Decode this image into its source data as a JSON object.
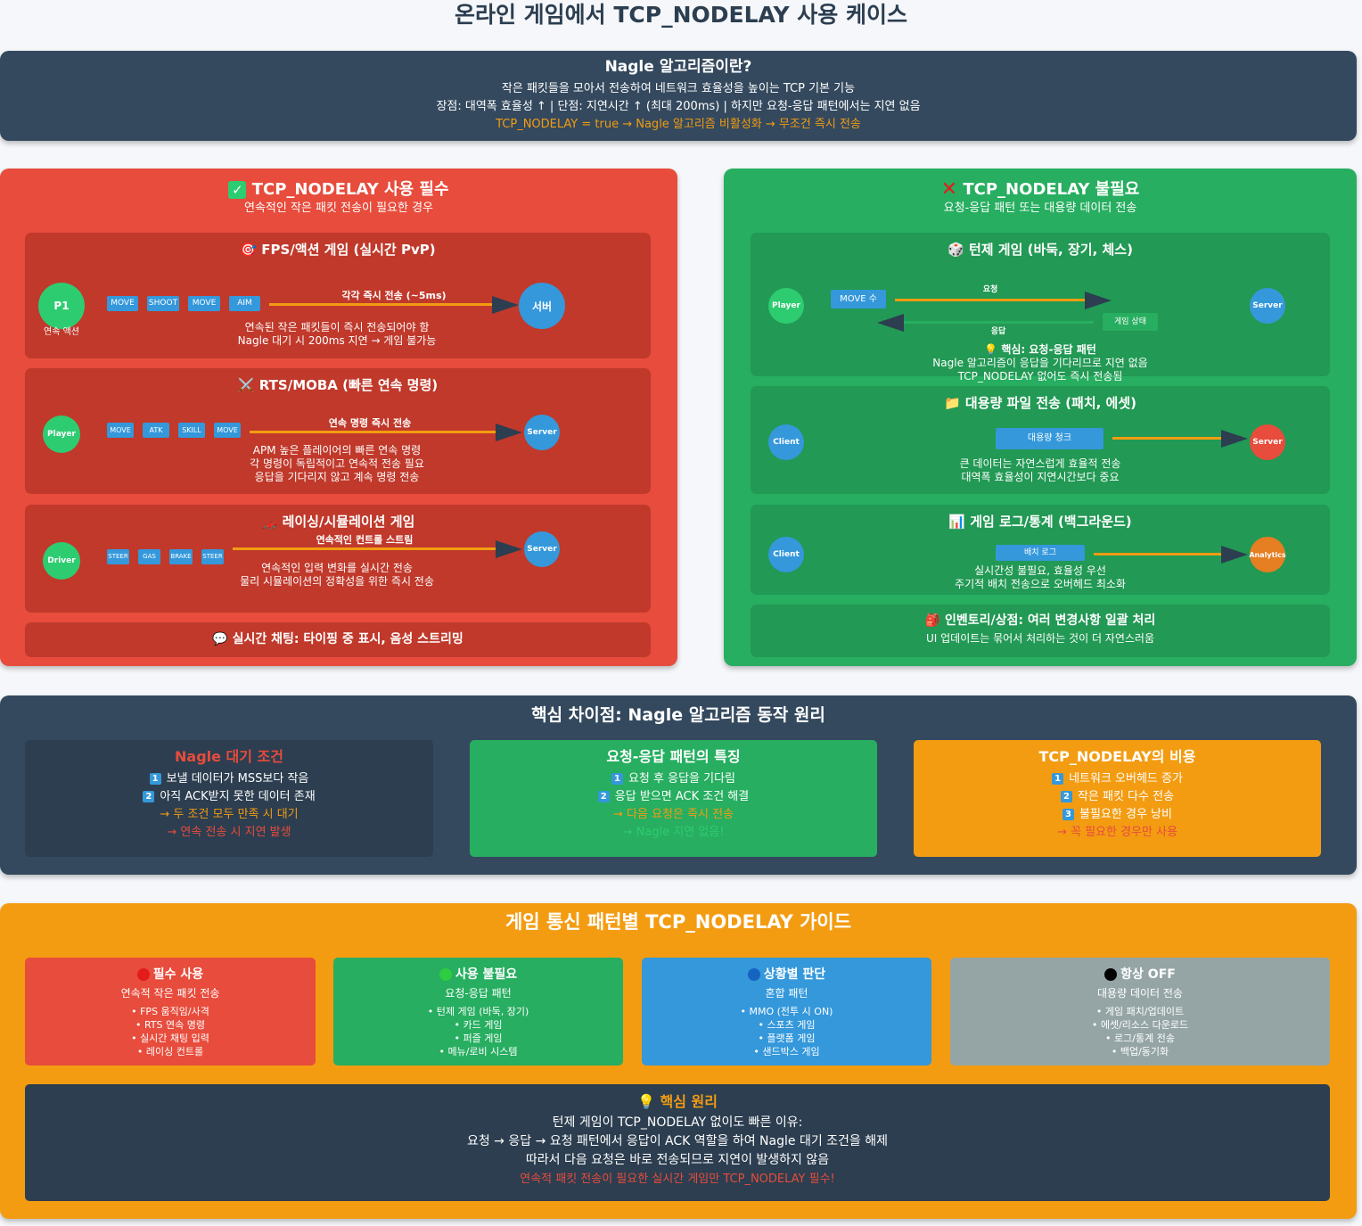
{
  "title": "온라인 게임에서 TCP_NODELAY 사용 케이스",
  "nagle": {
    "heading": "Nagle 알고리즘이란?",
    "line1": "작은 패킷들을 모아서 전송하여 네트워크 효율성을 높이는 TCP 기본 기능",
    "line2": "장점: 대역폭 효율성 ↑ | 단점: 지연시간 ↑ (최대 200ms) | 하지만 요청-응답 패턴에서는 지연 없음",
    "line3": "TCP_NODELAY = true → Nagle 알고리즘 비활성화 → 무조건 즉시 전송"
  },
  "required": {
    "icon": "check-icon",
    "heading": "TCP_NODELAY 사용 필수",
    "subtitle": "연속적인 작은 패킷 전송이 필요한 경우",
    "fps": {
      "heading": "🎯 FPS/액션 게임 (실시간 PvP)",
      "client": "P1",
      "client_caption": "연속 액션",
      "packets": [
        "MOVE",
        "SHOOT",
        "MOVE",
        "AIM"
      ],
      "arrow_label": "각각 즉시 전송 (~5ms)",
      "server": "서버",
      "desc1": "연속된 작은 패킷들이 즉시 전송되어야 함",
      "desc2": "Nagle 대기 시 200ms 지연 → 게임 불가능"
    },
    "rts": {
      "heading": "⚔️ RTS/MOBA (빠른 연속 명령)",
      "client": "Player",
      "packets": [
        "MOVE",
        "ATK",
        "SKILL",
        "MOVE"
      ],
      "arrow_label": "연속 명령 즉시 전송",
      "server": "Server",
      "desc1": "APM 높은 플레이어의 빠른 연속 명령",
      "desc2": "각 명령이 독립적이고 연속적 전송 필요",
      "desc3": "응답을 기다리지 않고 계속 명령 전송"
    },
    "racing": {
      "heading": "🏎️ 레이싱/시뮬레이션 게임",
      "client": "Driver",
      "packets": [
        "STEER",
        "GAS",
        "BRAKE",
        "STEER"
      ],
      "arrow_label": "연속적인 컨트롤 스트림",
      "server": "Server",
      "desc1": "연속적인 입력 변화를 실시간 전송",
      "desc2": "물리 시뮬레이션의 정확성을 위한 즉시 전송"
    },
    "chat": "💬 실시간 채팅: 타이핑 중 표시, 음성 스트리밍"
  },
  "not_needed": {
    "icon": "cross-icon",
    "heading": "TCP_NODELAY 불필요",
    "subtitle": "요청-응답 패턴 또는 대용량 데이터 전송",
    "turn": {
      "heading": "🎲 턴제 게임 (바둑, 장기, 체스)",
      "client": "Player",
      "packet": "MOVE 수",
      "req_label": "요청",
      "resp_packet": "게임 상태",
      "resp_label": "응답",
      "server": "Server",
      "key": "💡 핵심: 요청-응답 패턴",
      "desc1": "Nagle 알고리즘이 응답을 기다리므로 지연 없음",
      "desc2": "TCP_NODELAY 없어도 즉시 전송됨"
    },
    "file": {
      "heading": "📁 대용량 파일 전송 (패치, 에셋)",
      "client": "Client",
      "packet": "대용량 청크",
      "server": "Server",
      "desc1": "큰 데이터는 자연스럽게 효율적 전송",
      "desc2": "대역폭 효율성이 지연시간보다 중요"
    },
    "log": {
      "heading": "📊 게임 로그/통계 (백그라운드)",
      "client": "Client",
      "packet": "배치 로그",
      "server": "Analytics",
      "desc1": "실시간성 불필요, 효율성 우선",
      "desc2": "주기적 배치 전송으로 오버헤드 최소화"
    },
    "inventory_heading": "🎒 인벤토리/상점: 여러 변경사항 일괄 처리",
    "inventory_desc": "UI 업데이트는 묶어서 처리하는 것이 더 자연스러움"
  },
  "core": {
    "heading": "핵심 차이점: Nagle 알고리즘 동작 원리",
    "col1": {
      "heading": "Nagle 대기 조건",
      "n1": "1",
      "l1": "보낼 데이터가 MSS보다 작음",
      "n2": "2",
      "l2": "아직 ACK받지 못한 데이터 존재",
      "l3": "→ 두 조건 모두 만족 시 대기",
      "l4": "→ 연속 전송 시 지연 발생"
    },
    "col2": {
      "heading": "요청-응답 패턴의 특징",
      "n1": "1",
      "l1": "요청 후 응답을 기다림",
      "n2": "2",
      "l2": "응답 받으면 ACK 조건 해결",
      "l3": "→ 다음 요청은 즉시 전송",
      "l4": "→ Nagle 지연 없음!"
    },
    "col3": {
      "heading": "TCP_NODELAY의 비용",
      "n1": "1",
      "l1": "네트워크 오버헤드 증가",
      "n2": "2",
      "l2": "작은 패킷 다수 전송",
      "n3": "3",
      "l3": "불필요한 경우 낭비",
      "l4": "→ 꼭 필요한 경우만 사용"
    }
  },
  "guide": {
    "heading": "게임 통신 패턴별 TCP_NODELAY 가이드",
    "cards": [
      {
        "dot": "#e31b1b",
        "title": "필수 사용",
        "subtitle": "연속적 작은 패킷 전송",
        "items": [
          "• FPS 움직임/사격",
          "• RTS 연속 명령",
          "• 실시간 채팅 입력",
          "• 레이싱 컨트롤"
        ]
      },
      {
        "dot": "#2ecc40",
        "title": "사용 불필요",
        "subtitle": "요청-응답 패턴",
        "items": [
          "• 턴제 게임 (바둑, 장기)",
          "• 카드 게임",
          "• 퍼즐 게임",
          "• 메뉴/로비 시스템"
        ]
      },
      {
        "dot": "#1565c0",
        "title": "상황별 판단",
        "subtitle": "혼합 패턴",
        "items": [
          "• MMO (전투 시 ON)",
          "• 스포츠 게임",
          "• 플랫폼 게임",
          "• 샌드박스 게임"
        ]
      },
      {
        "dot": "#000000",
        "title": "항상 OFF",
        "subtitle": "대용량 데이터 전송",
        "items": [
          "• 게임 패치/업데이트",
          "• 에셋/리소스 다운로드",
          "• 로그/통계 전송",
          "• 백업/동기화"
        ]
      }
    ],
    "principle": {
      "heading": "💡 핵심 원리",
      "l1": "턴제 게임이 TCP_NODELAY 없이도 빠른 이유:",
      "l2": "요청 → 응답 → 요청 패턴에서 응답이 ACK 역할을 하여 Nagle 대기 조건을 해제",
      "l3": "따라서 다음 요청은 바로 전송되므로 지연이 발생하지 않음",
      "l4": "연속적 패킷 전송이 필요한 실시간 게임만 TCP_NODELAY 필수!"
    }
  },
  "colors": {
    "dark": "#34495e",
    "red": "#e74c3c",
    "green": "#27ae60",
    "orange": "#f39c12",
    "blue": "#3498db",
    "gray": "#95a5a6"
  }
}
